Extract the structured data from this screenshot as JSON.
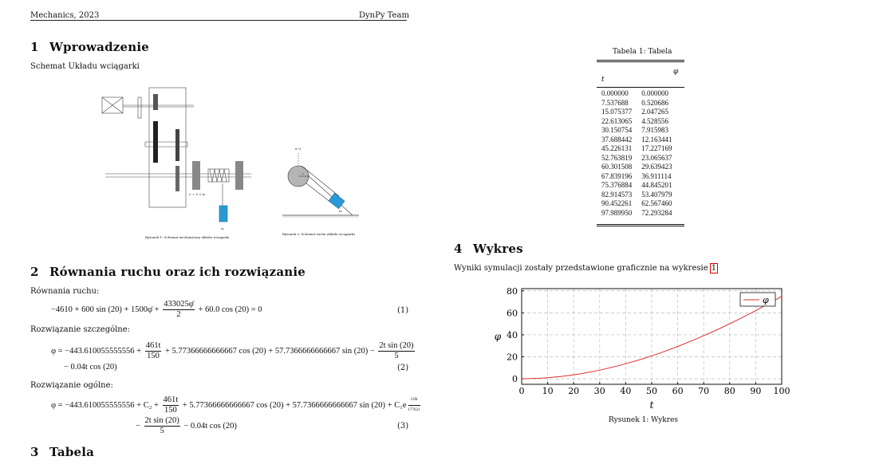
{
  "header": {
    "left": "Mechanics, 2023",
    "right": "DynPy Team"
  },
  "sections": {
    "s1": {
      "num": "1",
      "title": "Wprowadzenie"
    },
    "s2": {
      "num": "2",
      "title": "Równania ruchu oraz ich rozwiązanie"
    },
    "s3": {
      "num": "3",
      "title": "Tabela"
    },
    "s4": {
      "num": "4",
      "title": "Wykres"
    }
  },
  "intro_text": "Schemat Układu wciągarki",
  "figures": {
    "fig_left_caption": "Rysunek 1: Schemat mechaniczny układu wciągarki",
    "fig_right_caption": "Rysunek 2: Schemat ruchu układu wciągarki",
    "labels": {
      "m": "m",
      "r": "r",
      "x_axis": "x→t",
      "ratio": "i₂ = 0.5 m"
    }
  },
  "equations": {
    "motion_label": "Równania ruchu:",
    "eq1_num": "(1)",
    "particular_label": "Rozwiązanie szczególne:",
    "eq2_num": "(2)",
    "general_label": "Rozwiązanie ogólne:",
    "eq3_num": "(3)",
    "eq1": {
      "a": "−4610 + 600 sin (20) + 1500φ̈ +",
      "frac_n": "433025φ̈",
      "frac_d": "2",
      "b": "+ 60.0 cos (20) = 0"
    },
    "eq2": {
      "a": "φ = −443.610055555556 +",
      "f1n": "461t",
      "f1d": "150",
      "b": "+ 5.77366666666667 cos (20) + 57.7366666666667 sin (20) −",
      "f2n": "2t sin (20)",
      "f2d": "5",
      "c": "− 0.04t cos (20)"
    },
    "eq3": {
      "a": "φ = −443.610055555556 + C₂ +",
      "f1n": "461t",
      "f1d": "150",
      "b": "+ 5.77366666666667 cos (20) + 57.7366666666667 sin (20) + C₁e",
      "exp_n": "120t",
      "exp_d": "177621",
      "c1": "−",
      "f2n": "2t sin (20)",
      "f2d": "5",
      "c2": "− 0.04t cos (20)"
    }
  },
  "table": {
    "caption": "Tabela 1: Tabela",
    "col_phi": "φ",
    "col_t": "t",
    "rows": [
      [
        "0.000000",
        "0.000000"
      ],
      [
        "7.537688",
        "0.520686"
      ],
      [
        "15.075377",
        "2.047265"
      ],
      [
        "22.613065",
        "4.528556"
      ],
      [
        "30.150754",
        "7.915983"
      ],
      [
        "37.688442",
        "12.163441"
      ],
      [
        "45.226131",
        "17.227169"
      ],
      [
        "52.763819",
        "23.065637"
      ],
      [
        "60.301508",
        "29.639423"
      ],
      [
        "67.839196",
        "36.911114"
      ],
      [
        "75.376884",
        "44.845201"
      ],
      [
        "82.914573",
        "53.407979"
      ],
      [
        "90.452261",
        "62.567460"
      ],
      [
        "97.989950",
        "72.293284"
      ]
    ]
  },
  "plot_text": {
    "sentence": "Wyniki symulacji zostały przedstawione graficznie na wykresie",
    "ref": "1",
    "caption": "Rysunek 1: Wykres"
  },
  "chart_data": {
    "type": "line",
    "xlabel": "t",
    "ylabel": "φ",
    "xlim": [
      0,
      100
    ],
    "ylim": [
      -5,
      82
    ],
    "xticks": [
      "0",
      "10",
      "20",
      "30",
      "40",
      "50",
      "60",
      "70",
      "80",
      "90",
      "100"
    ],
    "yticks": [
      "0",
      "20",
      "40",
      "60",
      "80"
    ],
    "grid": true,
    "legend_position": "top-right",
    "series": [
      {
        "name": "φ",
        "color": "#e03030",
        "x": [
          0.0,
          7.537688,
          15.075377,
          22.613065,
          30.150754,
          37.688442,
          45.226131,
          52.763819,
          60.301508,
          67.839196,
          75.376884,
          82.914573,
          90.452261,
          97.98995,
          100.0
        ],
        "values": [
          0.0,
          0.520686,
          2.047265,
          4.528556,
          7.915983,
          12.163441,
          17.227169,
          23.065637,
          29.639423,
          36.911114,
          44.845201,
          53.407979,
          62.56746,
          72.293284,
          75.0
        ]
      }
    ]
  }
}
